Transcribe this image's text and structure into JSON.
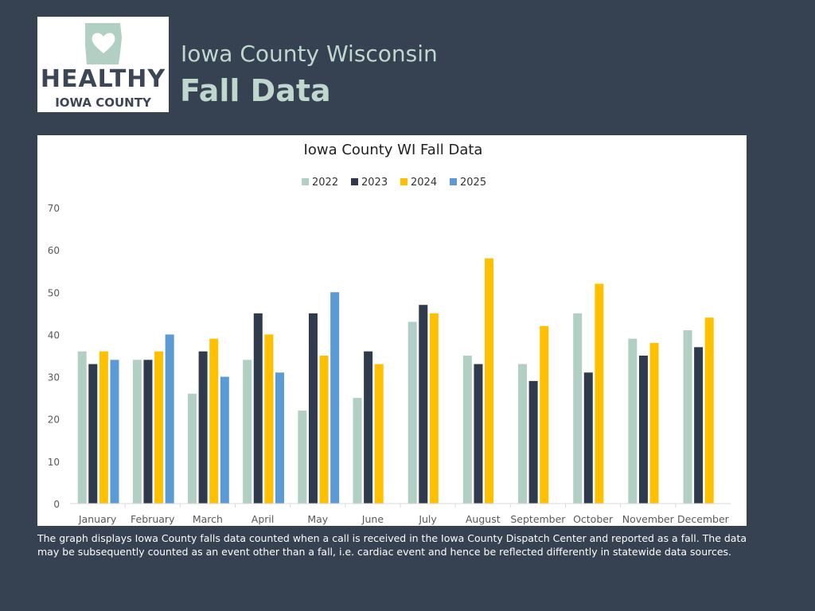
{
  "header": {
    "logo_text_line1": "HEALTHY",
    "logo_text_line2": "IOWA COUNTY",
    "subtitle": "Iowa County Wisconsin",
    "title": "Fall Data"
  },
  "caption": "The graph displays Iowa County falls data counted when a call is received in the Iowa County Dispatch Center and reported as a fall. The data may be subsequently counted as an event other than a fall, i.e. cardiac event and hence be reflected differently in statewide data sources.",
  "chart_data": {
    "type": "bar",
    "title": "Iowa County WI Fall Data",
    "xlabel": "",
    "ylabel": "",
    "ylim": [
      0,
      70
    ],
    "yticks": [
      0,
      10,
      20,
      30,
      40,
      50,
      60,
      70
    ],
    "grid": false,
    "legend_position": "top",
    "categories": [
      "January",
      "February",
      "March",
      "April",
      "May",
      "June",
      "July",
      "August",
      "September",
      "October",
      "November",
      "December"
    ],
    "series": [
      {
        "name": "2022",
        "color": "#b2cfc3",
        "values": [
          36,
          34,
          26,
          34,
          22,
          25,
          43,
          35,
          33,
          45,
          39,
          41
        ]
      },
      {
        "name": "2023",
        "color": "#2f3b4d",
        "values": [
          33,
          34,
          36,
          45,
          45,
          36,
          47,
          33,
          29,
          31,
          35,
          37
        ]
      },
      {
        "name": "2024",
        "color": "#ffc000",
        "values": [
          36,
          36,
          39,
          40,
          35,
          33,
          45,
          58,
          42,
          52,
          38,
          44
        ]
      },
      {
        "name": "2025",
        "color": "#5b9bd5",
        "values": [
          34,
          40,
          30,
          31,
          50,
          null,
          null,
          null,
          null,
          null,
          null,
          null
        ]
      }
    ]
  }
}
